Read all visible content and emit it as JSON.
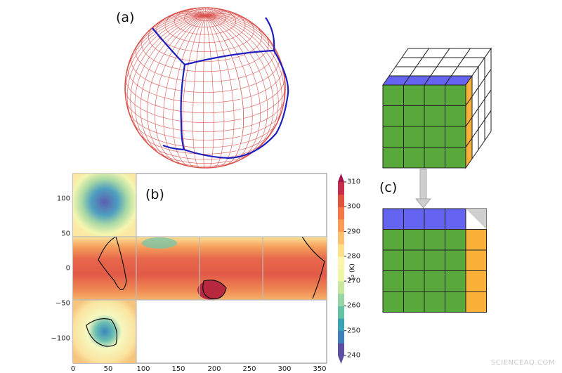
{
  "panels": {
    "a": "(a)",
    "b": "(b)",
    "c": "(c)"
  },
  "map": {
    "x_ticks": [
      "0",
      "50",
      "100",
      "150",
      "200",
      "250",
      "300",
      "350"
    ],
    "y_ticks": [
      "100",
      "50",
      "0",
      "−50",
      "−100"
    ],
    "xlim": [
      0,
      360
    ],
    "ylim": [
      -135,
      135
    ]
  },
  "colorbar": {
    "label": "T₂ (K)",
    "ticks": [
      "310",
      "300",
      "290",
      "280",
      "270",
      "260",
      "250",
      "240"
    ],
    "range": [
      240,
      310
    ],
    "colormap": "Spectral_r"
  },
  "colors": {
    "grid_red": "#d9534f",
    "cube_edge_blue": "#1f1fbf",
    "face_green": "#58a83b",
    "face_blue": "#6464f0",
    "face_orange": "#f9b13a",
    "arrow_gray": "#cfcfcf"
  },
  "watermark": "SCIENCEAQ.COM"
}
